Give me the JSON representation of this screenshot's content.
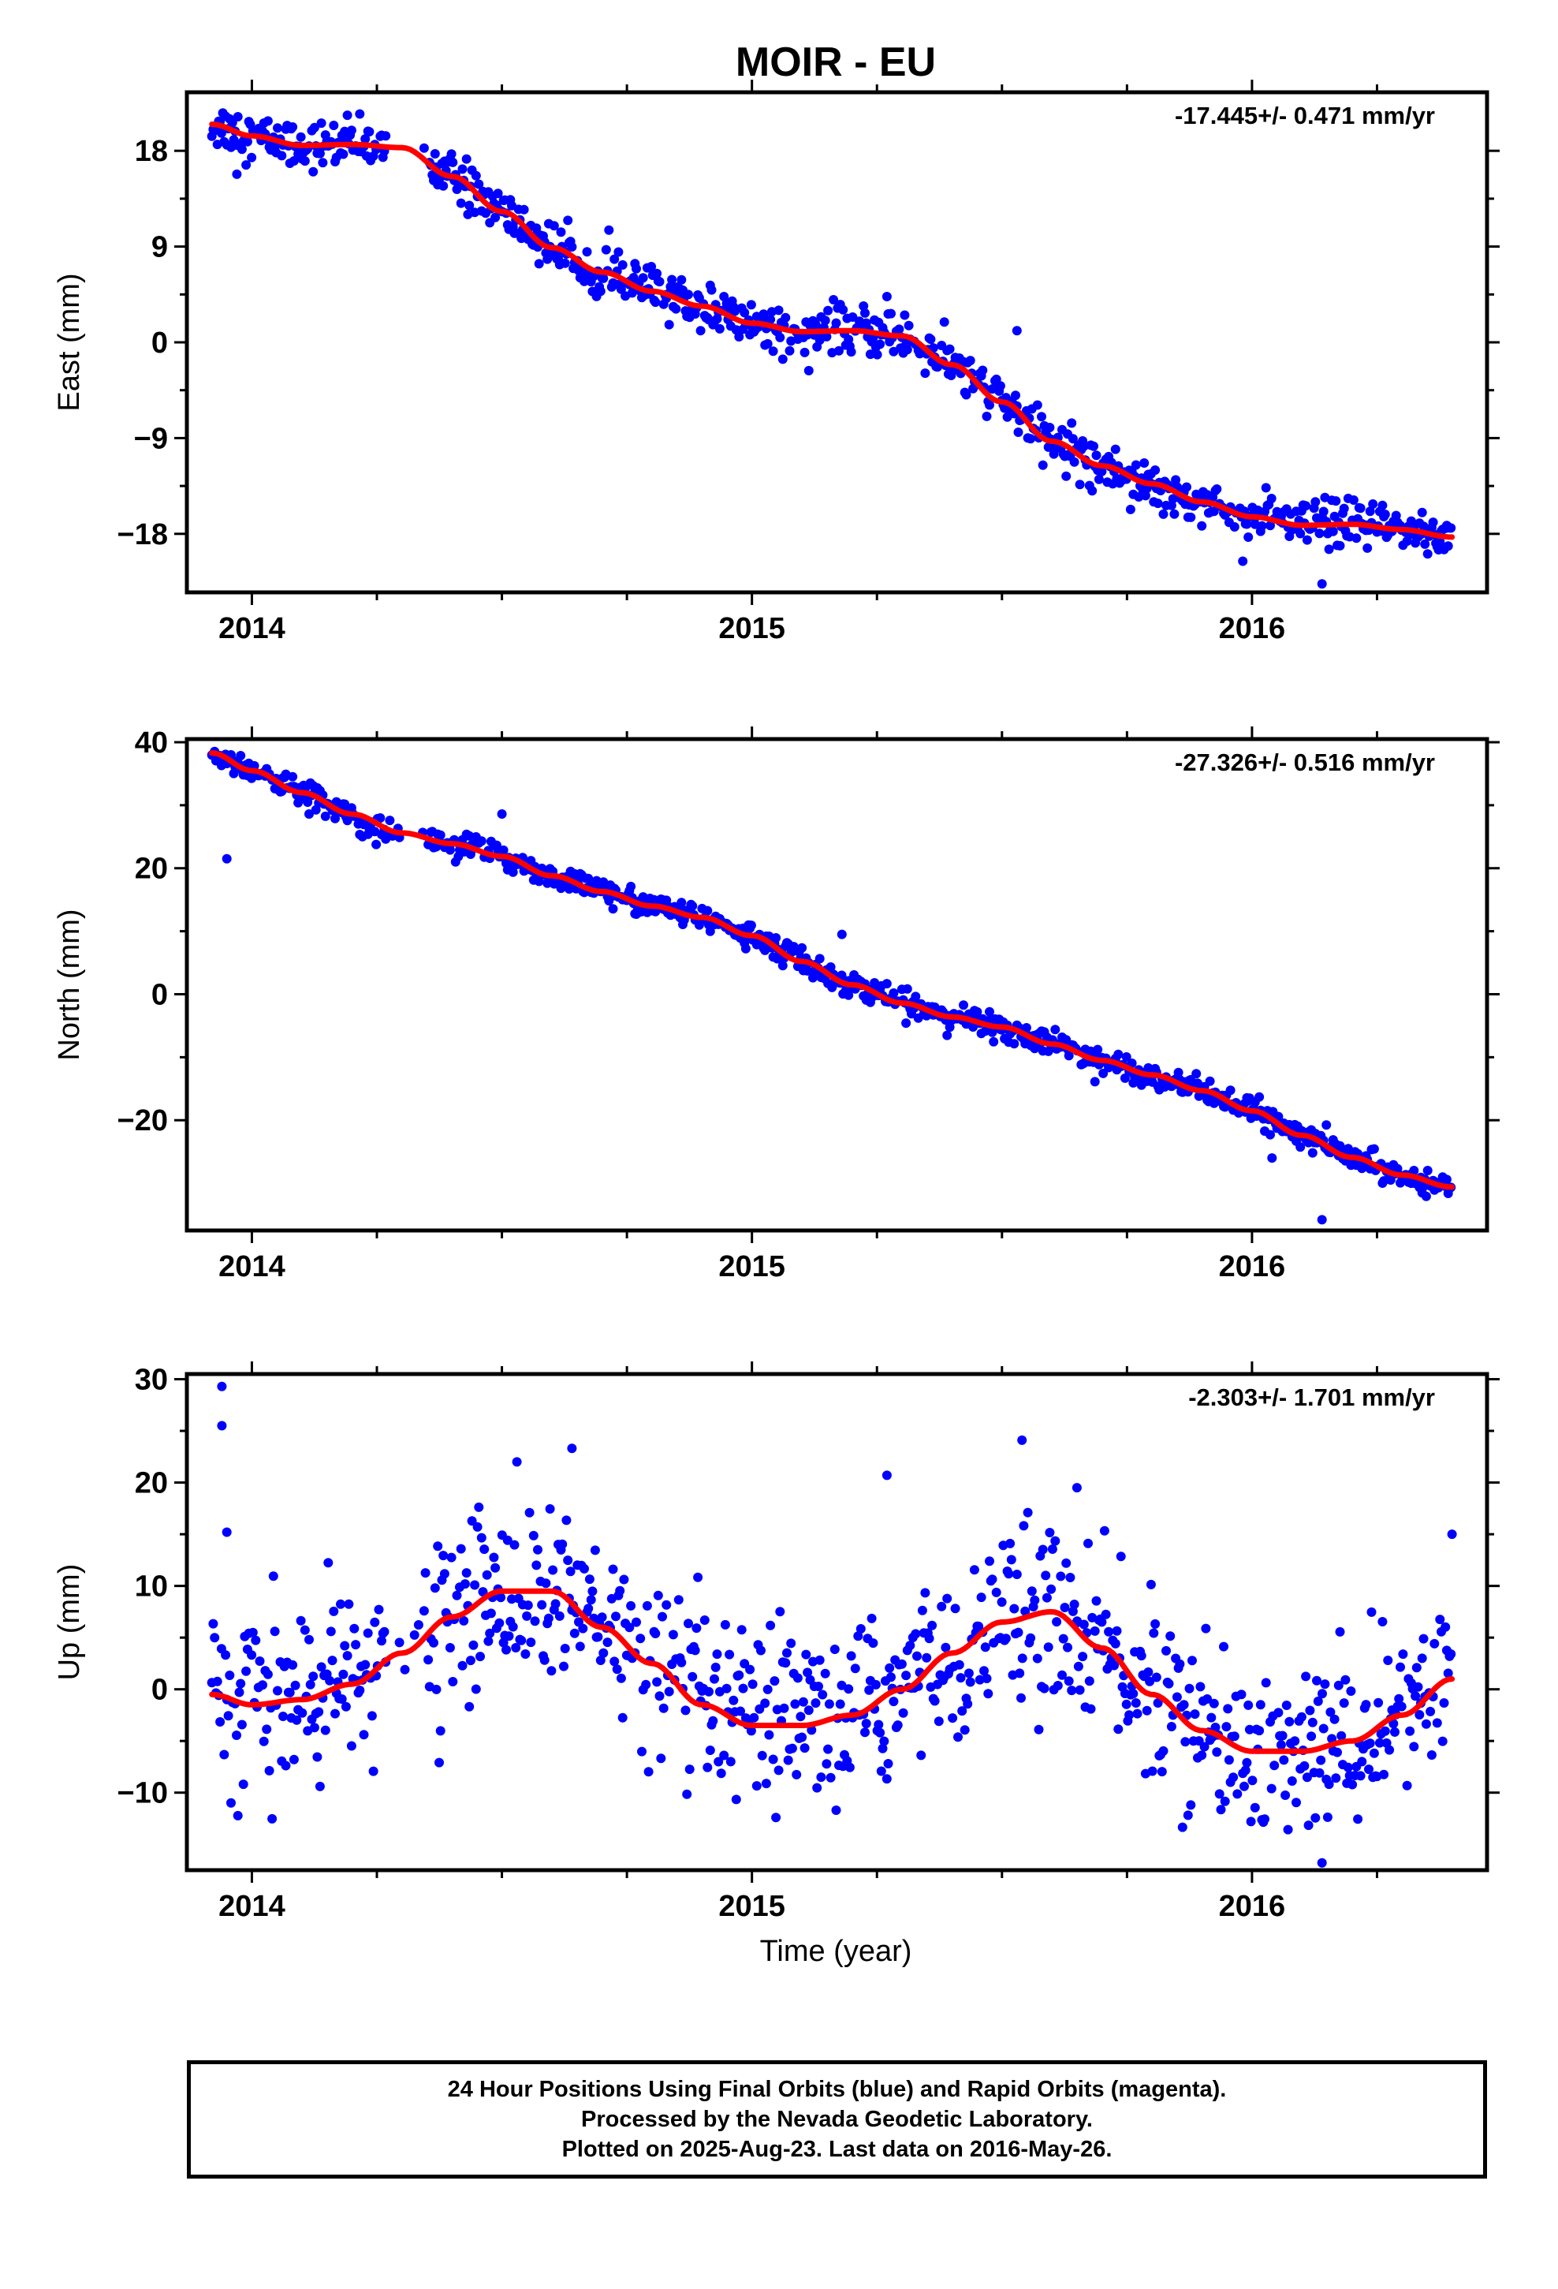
{
  "title": "MOIR - EU",
  "xlabel": "Time (year)",
  "colors": {
    "data": "#0000ff",
    "fit": "#ff0000",
    "axis": "#000000"
  },
  "footer": {
    "line1": "24 Hour Positions Using Final Orbits (blue) and Rapid Orbits (magenta).",
    "line2": "Processed by the Nevada Geodetic Laboratory.",
    "line3": "Plotted on 2025-Aug-23. Last data on 2016-May-26."
  },
  "chart_data": [
    {
      "type": "scatter",
      "panel": "east",
      "ylabel": "East (mm)",
      "annotation": "-17.445+/- 0.471 mm/yr",
      "xlim": [
        2013.87,
        2016.47
      ],
      "ylim": [
        -23.5,
        23.5
      ],
      "xticks": [
        2014,
        2015,
        2016
      ],
      "xtick_labels": [
        "2014",
        "2015",
        "2016"
      ],
      "yticks": [
        18,
        9,
        0,
        -9,
        -18
      ],
      "ytick_labels": [
        "18",
        "9",
        "0",
        "−9",
        "−18"
      ],
      "trend_fit": {
        "x": [
          2013.92,
          2014.0,
          2014.1,
          2014.2,
          2014.3,
          2014.4,
          2014.5,
          2014.6,
          2014.7,
          2014.8,
          2014.9,
          2015.0,
          2015.1,
          2015.2,
          2015.3,
          2015.4,
          2015.5,
          2015.6,
          2015.7,
          2015.8,
          2015.9,
          2016.0,
          2016.1,
          2016.2,
          2016.3,
          2016.4
        ],
        "y": [
          20.5,
          19.4,
          18.5,
          18.6,
          18.3,
          15.6,
          12.3,
          8.9,
          6.6,
          4.8,
          3.4,
          1.8,
          1.0,
          1.1,
          0.6,
          -2.1,
          -5.6,
          -9.3,
          -11.6,
          -13.3,
          -15.0,
          -16.4,
          -17.2,
          -17.1,
          -17.6,
          -18.3
        ]
      },
      "series": [
        {
          "name": "Final Orbits",
          "x": [],
          "y": []
        }
      ],
      "outliers": {
        "x": [
          2013.97,
          2014.62,
          2015.27,
          2015.53,
          2016.14
        ],
        "y": [
          15.8,
          9.0,
          4.3,
          1.1,
          -22.7
        ]
      },
      "scatter_sd": 1.1
    },
    {
      "type": "scatter",
      "panel": "north",
      "ylabel": "North (mm)",
      "annotation": "-27.326+/- 0.516 mm/yr",
      "xlim": [
        2013.87,
        2016.47
      ],
      "ylim": [
        -37.5,
        40.5
      ],
      "xticks": [
        2014,
        2015,
        2016
      ],
      "xtick_labels": [
        "2014",
        "2015",
        "2016"
      ],
      "yticks": [
        40,
        20,
        0,
        -20
      ],
      "ytick_labels": [
        "40",
        "20",
        "0",
        "−20"
      ],
      "trend_fit": {
        "x": [
          2013.92,
          2014.0,
          2014.1,
          2014.2,
          2014.3,
          2014.4,
          2014.5,
          2014.6,
          2014.7,
          2014.8,
          2014.9,
          2015.0,
          2015.1,
          2015.2,
          2015.3,
          2015.4,
          2015.5,
          2015.6,
          2015.7,
          2015.8,
          2015.9,
          2016.0,
          2016.1,
          2016.2,
          2016.3,
          2016.4
        ],
        "y": [
          38.3,
          35.5,
          32.0,
          28.6,
          25.6,
          23.9,
          21.9,
          18.8,
          16.3,
          14.0,
          12.2,
          9.3,
          5.2,
          1.5,
          -1.4,
          -3.6,
          -5.2,
          -7.9,
          -10.5,
          -12.8,
          -15.3,
          -18.5,
          -22.4,
          -25.9,
          -28.7,
          -30.6
        ]
      },
      "series": [
        {
          "name": "Final Orbits",
          "x": [],
          "y": []
        }
      ],
      "outliers": {
        "x": [
          2013.95,
          2014.5,
          2015.18,
          2016.14,
          2016.04
        ],
        "y": [
          21.5,
          28.6,
          9.5,
          -35.8,
          -26.0
        ]
      },
      "scatter_sd": 1.0
    },
    {
      "type": "scatter",
      "panel": "up",
      "ylabel": "Up (mm)",
      "annotation": "-2.303+/- 1.701 mm/yr",
      "xlim": [
        2013.87,
        2016.47
      ],
      "ylim": [
        -17.5,
        30.5
      ],
      "xticks": [
        2014,
        2015,
        2016
      ],
      "xtick_labels": [
        "2014",
        "2015",
        "2016"
      ],
      "yticks": [
        30,
        20,
        10,
        0,
        -10
      ],
      "ytick_labels": [
        "30",
        "20",
        "10",
        "0",
        "−10"
      ],
      "trend_fit": {
        "x": [
          2013.92,
          2014.0,
          2014.1,
          2014.2,
          2014.3,
          2014.4,
          2014.5,
          2014.6,
          2014.7,
          2014.8,
          2014.9,
          2015.0,
          2015.1,
          2015.2,
          2015.3,
          2015.4,
          2015.5,
          2015.6,
          2015.7,
          2015.8,
          2015.9,
          2016.0,
          2016.1,
          2016.2,
          2016.3,
          2016.4
        ],
        "y": [
          -0.5,
          -1.5,
          -1.0,
          0.5,
          3.5,
          7.0,
          9.5,
          9.5,
          6.0,
          2.5,
          -1.5,
          -3.5,
          -3.5,
          -2.5,
          0.0,
          3.5,
          6.5,
          7.5,
          4.0,
          -0.5,
          -4.0,
          -6.0,
          -6.0,
          -5.0,
          -2.5,
          1.0
        ]
      },
      "series": [
        {
          "name": "Final Orbits",
          "x": [],
          "y": []
        }
      ],
      "outliers": {
        "x": [
          2013.94,
          2013.94,
          2013.95,
          2014.53,
          2014.64,
          2015.27,
          2015.54,
          2015.65,
          2016.14,
          2016.4
        ],
        "y": [
          29.3,
          25.5,
          15.2,
          22.0,
          23.3,
          20.7,
          24.1,
          19.5,
          -16.8,
          15.0
        ]
      },
      "scatter_sd": 4.2
    }
  ]
}
